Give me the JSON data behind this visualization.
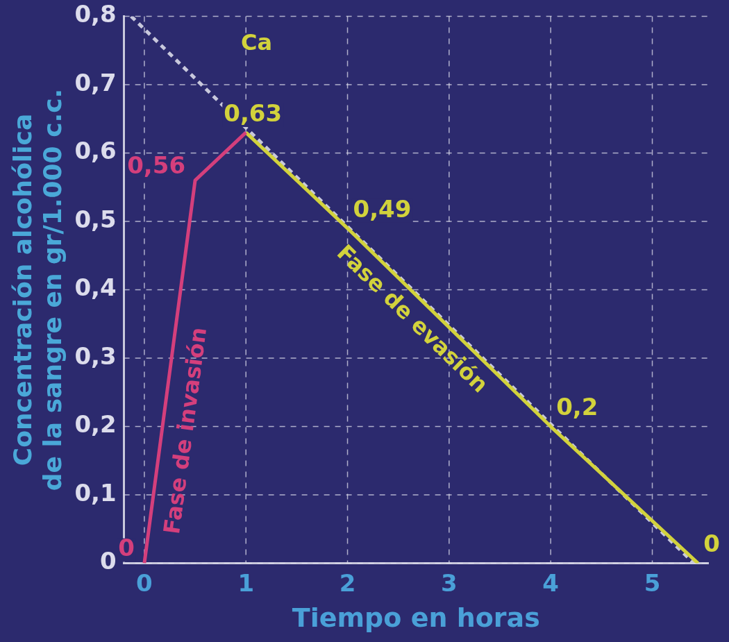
{
  "chart_data": {
    "type": "line",
    "xlabel": "Tiempo en horas",
    "ylabel": "Concentración alcohólica\nde la sangre en gr/1.000 c.c.",
    "xlim": [
      -0.2,
      5.55
    ],
    "ylim": [
      0,
      0.8
    ],
    "xticks": [
      0,
      1,
      2,
      3,
      4,
      5
    ],
    "yticks": [
      0,
      {
        "value": 0.1,
        "label": "0,1"
      },
      {
        "value": 0.2,
        "label": "0,2"
      },
      {
        "value": 0.3,
        "label": "0,3"
      },
      {
        "value": 0.4,
        "label": "0,4"
      },
      {
        "value": 0.5,
        "label": "0,5"
      },
      {
        "value": 0.6,
        "label": "0,6"
      },
      {
        "value": 0.7,
        "label": "0,7"
      },
      {
        "value": 0.8,
        "label": "0,8"
      }
    ],
    "grid": true,
    "legend": false,
    "marker": "none",
    "series": [
      {
        "name": "Fase de invasión",
        "color": "#d43f7c",
        "x": [
          0,
          0.5,
          1
        ],
        "values": [
          0,
          0.56,
          0.63
        ],
        "value_labels": [
          "0",
          "0,56",
          null
        ]
      },
      {
        "name": "Fase de evasión",
        "color": "#d2d23c",
        "x": [
          1,
          2,
          4,
          5.45
        ],
        "values": [
          0.63,
          0.49,
          0.2,
          0
        ],
        "value_labels": [
          "0,63",
          "0,49",
          "0,2",
          "0"
        ]
      },
      {
        "color": "#c8c8dc",
        "x": [
          -0.13,
          5.41
        ],
        "values": [
          0.8,
          0
        ],
        "line_style": "dashed"
      }
    ],
    "annotations": [
      "Ca"
    ]
  }
}
